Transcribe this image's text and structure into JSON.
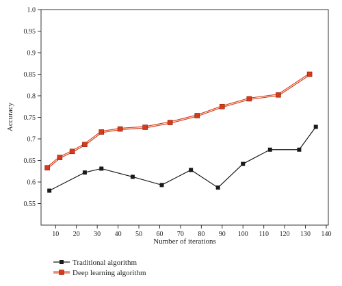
{
  "chart_data": {
    "type": "line",
    "title": "",
    "xlabel": "Number of iterations",
    "ylabel": "Accuracy",
    "xlim": [
      3,
      141
    ],
    "ylim": [
      0.5,
      1.0
    ],
    "xticks": [
      10,
      20,
      30,
      40,
      50,
      60,
      70,
      80,
      90,
      100,
      110,
      120,
      130,
      140
    ],
    "yticks": [
      0.55,
      0.6,
      0.65,
      0.7,
      0.75,
      0.8,
      0.85,
      0.9,
      0.95,
      1.0
    ],
    "ytick_labels": [
      "0.55",
      "0.6",
      "0.65",
      "0.7",
      "0.75",
      "0.8",
      "0.85",
      "0.9",
      "0.95",
      "1.0"
    ],
    "grid": false,
    "legend_position": "bottom-left, below plot",
    "series": [
      {
        "name": "Traditional algorithm",
        "color": "#1a1a1a",
        "marker": "square",
        "x": [
          7,
          24,
          32,
          47,
          61,
          75,
          88,
          100,
          113,
          127,
          135
        ],
        "y": [
          0.58,
          0.622,
          0.631,
          0.612,
          0.593,
          0.628,
          0.587,
          0.642,
          0.675,
          0.675,
          0.728
        ]
      },
      {
        "name": "Deep learning algorithm",
        "color": "#d63a1a",
        "marker": "square",
        "x": [
          6,
          12,
          18,
          24,
          32,
          41,
          53,
          65,
          78,
          90,
          103,
          117,
          132
        ],
        "y": [
          0.633,
          0.657,
          0.671,
          0.687,
          0.716,
          0.723,
          0.727,
          0.738,
          0.754,
          0.775,
          0.793,
          0.802,
          0.85
        ]
      }
    ]
  }
}
